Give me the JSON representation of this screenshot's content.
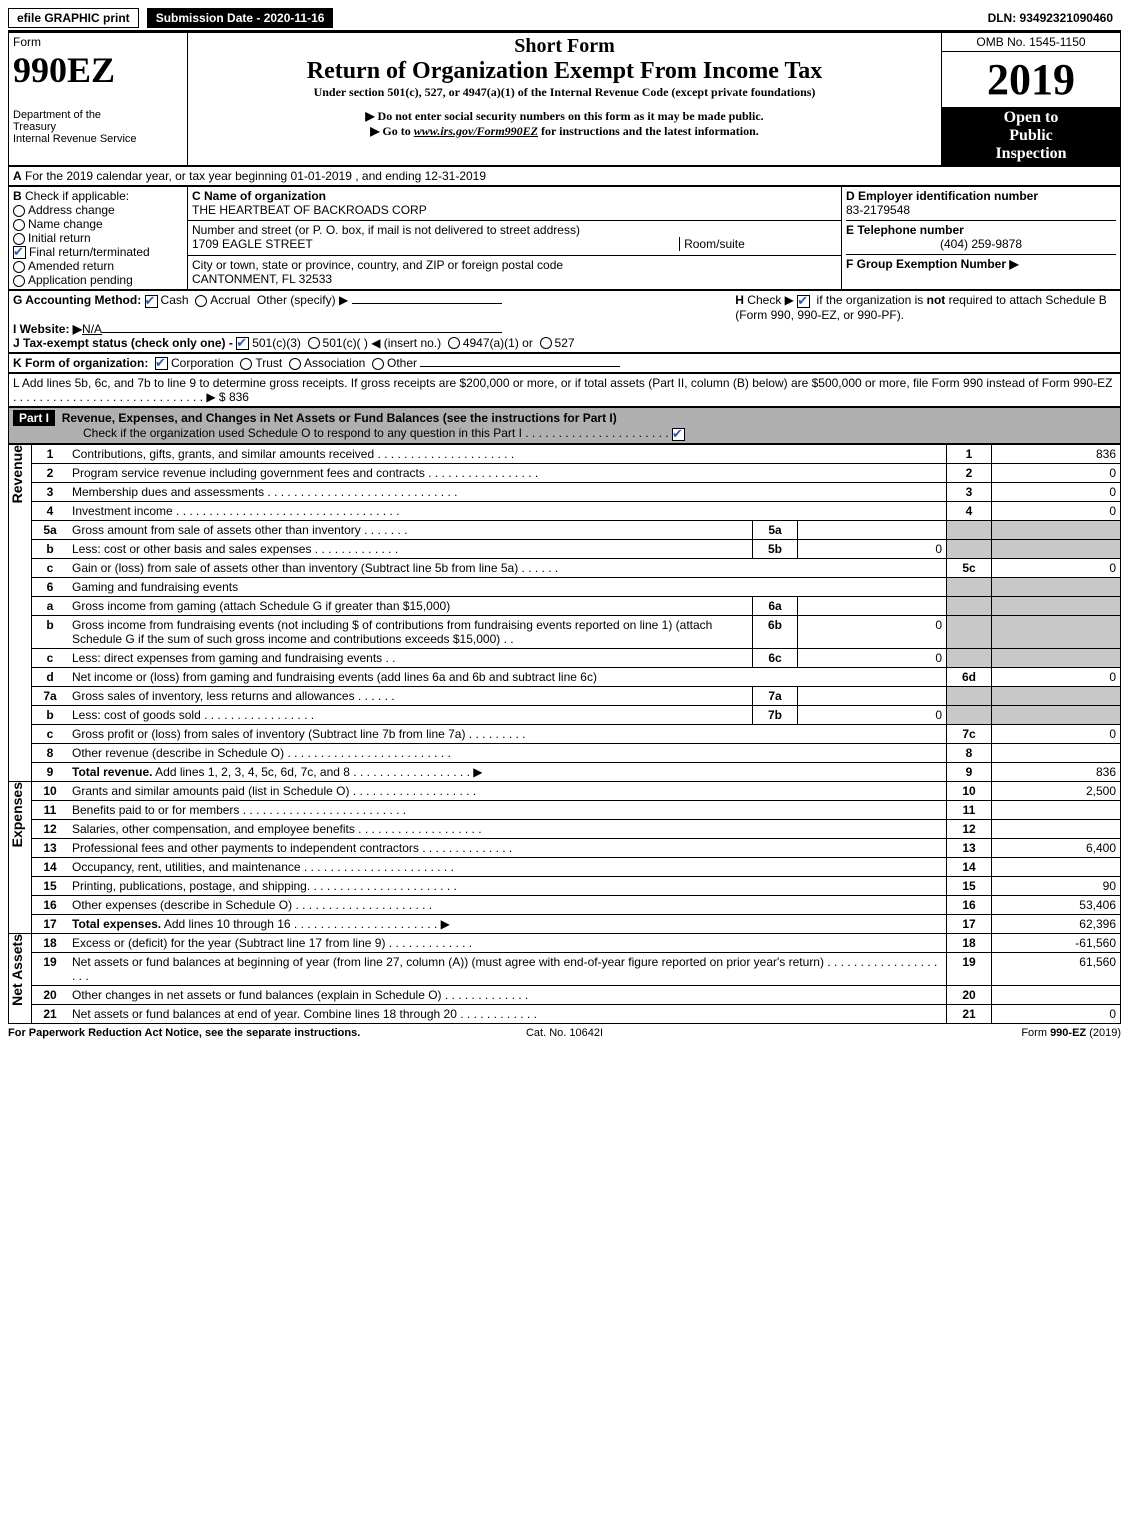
{
  "topbar": {
    "efile": "efile GRAPHIC print",
    "submission_label": "Submission Date - 2020-11-16",
    "dln": "DLN: 93492321090460"
  },
  "header": {
    "form_label": "Form",
    "form990": "990EZ",
    "dept": "Department of the Treasury\nInternal Revenue Service",
    "short_form": "Short Form",
    "title": "Return of Organization Exempt From Income Tax",
    "subtitle": "Under section 501(c), 527, or 4947(a)(1) of the Internal Revenue Code (except private foundations)",
    "note1": "▶ Do not enter social security numbers on this form as it may be made public.",
    "note2_pre": "▶ Go to ",
    "note2_link": "www.irs.gov/Form990EZ",
    "note2_post": " for instructions and the latest information.",
    "omb": "OMB No. 1545-1150",
    "year": "2019",
    "open_public": "Open to Public Inspection"
  },
  "lineA": "For the 2019 calendar year, or tax year beginning 01-01-2019 , and ending 12-31-2019",
  "boxB": {
    "label": "Check if applicable:",
    "items": [
      "Address change",
      "Name change",
      "Initial return",
      "Final return/terminated",
      "Amended return",
      "Application pending"
    ],
    "checked_idx": 3
  },
  "boxC": {
    "label_c": "C Name of organization",
    "name": "THE HEARTBEAT OF BACKROADS CORP",
    "label_addr": "Number and street (or P. O. box, if mail is not delivered to street address)",
    "street": "1709 EAGLE STREET",
    "room_label": "Room/suite",
    "label_city": "City or town, state or province, country, and ZIP or foreign postal code",
    "city": "CANTONMENT, FL  32533"
  },
  "boxD": {
    "label": "D Employer identification number",
    "value": "83-2179548"
  },
  "boxE": {
    "label": "E Telephone number",
    "value": "(404) 259-9878"
  },
  "boxF": {
    "label": "F Group Exemption Number  ▶"
  },
  "boxG": {
    "label": "G Accounting Method:",
    "cash": "Cash",
    "accrual": "Accrual",
    "other": "Other (specify) ▶"
  },
  "boxH": {
    "text": "H Check ▶ ☑ if the organization is not required to attach Schedule B (Form 990, 990-EZ, or 990-PF)."
  },
  "boxI": {
    "label": "I Website: ▶",
    "value": "N/A"
  },
  "boxJ": {
    "label": "J Tax-exempt status (check only one) -",
    "o1": "501(c)(3)",
    "o2": "501(c)(  ) ◀ (insert no.)",
    "o3": "4947(a)(1) or",
    "o4": "527"
  },
  "boxK": {
    "label": "K Form of organization:",
    "o1": "Corporation",
    "o2": "Trust",
    "o3": "Association",
    "o4": "Other"
  },
  "boxL": {
    "text": "L Add lines 5b, 6c, and 7b to line 9 to determine gross receipts. If gross receipts are $200,000 or more, or if total assets (Part II, column (B) below) are $500,000 or more, file Form 990 instead of Form 990-EZ",
    "dots": ". . . . . . . . . . . . . . . . . . . . . . . . . . . . .  ▶ $ 836"
  },
  "part1": {
    "label": "Part I",
    "title": "Revenue, Expenses, and Changes in Net Assets or Fund Balances (see the instructions for Part I)",
    "check_line": "Check if the organization used Schedule O to respond to any question in this Part I . . . . . . . . . . . . . . . . . . . . . .",
    "checkbox_checked": true
  },
  "vlabels": {
    "revenue": "Revenue",
    "expenses": "Expenses",
    "netassets": "Net Assets"
  },
  "lines": [
    {
      "n": "1",
      "d": "Contributions, gifts, grants, and similar amounts received . . . . . . . . . . . . . . . . . . . . .",
      "rn": "1",
      "v": "836"
    },
    {
      "n": "2",
      "d": "Program service revenue including government fees and contracts . . . . . . . . . . . . . . . . .",
      "rn": "2",
      "v": "0"
    },
    {
      "n": "3",
      "d": "Membership dues and assessments . . . . . . . . . . . . . . . . . . . . . . . . . . . . .",
      "rn": "3",
      "v": "0"
    },
    {
      "n": "4",
      "d": "Investment income . . . . . . . . . . . . . . . . . . . . . . . . . . . . . . . . . .",
      "rn": "4",
      "v": "0"
    },
    {
      "n": "5a",
      "d": "Gross amount from sale of assets other than inventory . . . . . . .",
      "sub": "5a",
      "sv": "",
      "shade": true
    },
    {
      "n": "b",
      "d": "Less: cost or other basis and sales expenses . . . . . . . . . . . . .",
      "sub": "5b",
      "sv": "0",
      "shade": true
    },
    {
      "n": "c",
      "d": "Gain or (loss) from sale of assets other than inventory (Subtract line 5b from line 5a) . . . . . .",
      "rn": "5c",
      "v": "0"
    },
    {
      "n": "6",
      "d": "Gaming and fundraising events",
      "shade": true,
      "noval": true
    },
    {
      "n": "a",
      "d": "Gross income from gaming (attach Schedule G if greater than $15,000)",
      "sub": "6a",
      "sv": "",
      "shade": true
    },
    {
      "n": "b",
      "d": "Gross income from fundraising events (not including $                of contributions from fundraising events reported on line 1) (attach Schedule G if the sum of such gross income and contributions exceeds $15,000)   . .",
      "sub": "6b",
      "sv": "0",
      "shade": true
    },
    {
      "n": "c",
      "d": "Less: direct expenses from gaming and fundraising events     . .",
      "sub": "6c",
      "sv": "0",
      "shade": true
    },
    {
      "n": "d",
      "d": "Net income or (loss) from gaming and fundraising events (add lines 6a and 6b and subtract line 6c)",
      "rn": "6d",
      "v": "0"
    },
    {
      "n": "7a",
      "d": "Gross sales of inventory, less returns and allowances . . . . . .",
      "sub": "7a",
      "sv": "",
      "shade": true
    },
    {
      "n": "b",
      "d": "Less: cost of goods sold           . . . . . . . . . . . . . . . . .",
      "sub": "7b",
      "sv": "0",
      "shade": true
    },
    {
      "n": "c",
      "d": "Gross profit or (loss) from sales of inventory (Subtract line 7b from line 7a) . . . . . . . . .",
      "rn": "7c",
      "v": "0"
    },
    {
      "n": "8",
      "d": "Other revenue (describe in Schedule O) . . . . . . . . . . . . . . . . . . . . . . . . .",
      "rn": "8",
      "v": ""
    },
    {
      "n": "9",
      "d": "Total revenue. Add lines 1, 2, 3, 4, 5c, 6d, 7c, and 8  . . . . . . . . . . . . . . . . . .    ▶",
      "rn": "9",
      "v": "836",
      "bold": true
    }
  ],
  "expenses": [
    {
      "n": "10",
      "d": "Grants and similar amounts paid (list in Schedule O) . . . . . . . . . . . . . . . . . . .",
      "rn": "10",
      "v": "2,500"
    },
    {
      "n": "11",
      "d": "Benefits paid to or for members      . . . . . . . . . . . . . . . . . . . . . . . . .",
      "rn": "11",
      "v": ""
    },
    {
      "n": "12",
      "d": "Salaries, other compensation, and employee benefits . . . . . . . . . . . . . . . . . . .",
      "rn": "12",
      "v": ""
    },
    {
      "n": "13",
      "d": "Professional fees and other payments to independent contractors . . . . . . . . . . . . . .",
      "rn": "13",
      "v": "6,400"
    },
    {
      "n": "14",
      "d": "Occupancy, rent, utilities, and maintenance . . . . . . . . . . . . . . . . . . . . . . .",
      "rn": "14",
      "v": ""
    },
    {
      "n": "15",
      "d": "Printing, publications, postage, and shipping. . . . . . . . . . . . . . . . . . . . . . .",
      "rn": "15",
      "v": "90"
    },
    {
      "n": "16",
      "d": "Other expenses (describe in Schedule O)       . . . . . . . . . . . . . . . . . . . . .",
      "rn": "16",
      "v": "53,406"
    },
    {
      "n": "17",
      "d": "Total expenses. Add lines 10 through 16     . . . . . . . . . . . . . . . . . . . . . .    ▶",
      "rn": "17",
      "v": "62,396",
      "bold": true
    }
  ],
  "netassets": [
    {
      "n": "18",
      "d": "Excess or (deficit) for the year (Subtract line 17 from line 9)          . . . . . . . . . . . . .",
      "rn": "18",
      "v": "-61,560"
    },
    {
      "n": "19",
      "d": "Net assets or fund balances at beginning of year (from line 27, column (A)) (must agree with end-of-year figure reported on prior year's return) . . . . . . . . . . . . . . . . . . . .",
      "rn": "19",
      "v": "61,560",
      "shadefirstrow": true
    },
    {
      "n": "20",
      "d": "Other changes in net assets or fund balances (explain in Schedule O) . . . . . . . . . . . . .",
      "rn": "20",
      "v": ""
    },
    {
      "n": "21",
      "d": "Net assets or fund balances at end of year. Combine lines 18 through 20 . . . . . . . . . . . .",
      "rn": "21",
      "v": "0"
    }
  ],
  "footer": {
    "left": "For Paperwork Reduction Act Notice, see the separate instructions.",
    "mid": "Cat. No. 10642I",
    "right": "Form 990-EZ (2019)"
  }
}
